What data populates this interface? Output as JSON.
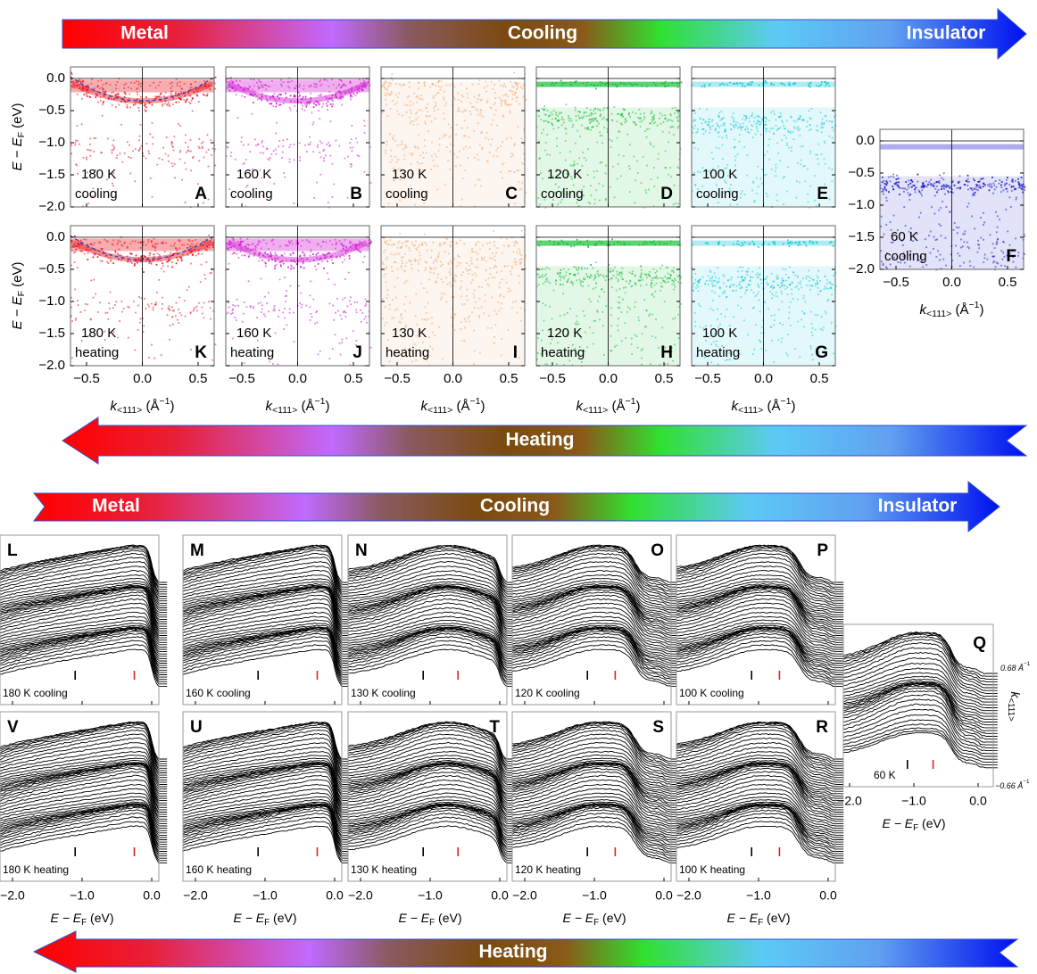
{
  "arrows": {
    "top_cooling": {
      "start": "Metal",
      "middle": "Cooling",
      "end": "Insulator"
    },
    "top_heating": {
      "middle": "Heating"
    },
    "bottom_cooling": {
      "start": "Metal",
      "middle": "Cooling",
      "end": "Insulator"
    },
    "bottom_heating": {
      "middle": "Heating"
    }
  },
  "maps": {
    "y_label": {
      "main": "E − E",
      "sub": "F",
      "unit": " (eV)"
    },
    "x_label": {
      "main": "k",
      "sub": "<111>",
      "unit": " (Å",
      "sup": "−1",
      "close": ")"
    },
    "yticks": [
      "0.0",
      "−0.5",
      "−1.0",
      "−1.5",
      "−2.0"
    ],
    "xticks": [
      "−0.5",
      "0.0",
      "0.5"
    ],
    "panels": [
      {
        "letter": "A",
        "temp": "180 K",
        "mode": "cooling",
        "color": "#e8141c"
      },
      {
        "letter": "B",
        "temp": "160 K",
        "mode": "cooling",
        "color": "#d01ad0"
      },
      {
        "letter": "C",
        "temp": "130 K",
        "mode": "cooling",
        "color": "#f0a060"
      },
      {
        "letter": "D",
        "temp": "120 K",
        "mode": "cooling",
        "color": "#18c03a"
      },
      {
        "letter": "E",
        "temp": "100 K",
        "mode": "cooling",
        "color": "#18c8d8"
      },
      {
        "letter": "K",
        "temp": "180 K",
        "mode": "heating",
        "color": "#e8141c"
      },
      {
        "letter": "J",
        "temp": "160 K",
        "mode": "heating",
        "color": "#d01ad0"
      },
      {
        "letter": "I",
        "temp": "130 K",
        "mode": "heating",
        "color": "#f0a060"
      },
      {
        "letter": "H",
        "temp": "120 K",
        "mode": "heating",
        "color": "#18c03a"
      },
      {
        "letter": "G",
        "temp": "100 K",
        "mode": "heating",
        "color": "#18c8d8"
      },
      {
        "letter": "F",
        "temp": "60 K",
        "mode": "cooling",
        "color": "#1414c8"
      }
    ]
  },
  "spectra": {
    "x_label": {
      "main": "E − E",
      "sub": "F",
      "unit": " (eV)"
    },
    "xticks": [
      "−2.0",
      "−1.0",
      "0.0"
    ],
    "k_label": {
      "main": "k",
      "sub": "<111>"
    },
    "k_top": {
      "main": "0.68 Å",
      "sup": "−1"
    },
    "k_bottom": {
      "main": "−0.66 Å",
      "sup": "−1"
    },
    "panels": [
      {
        "letter": "L",
        "label": "180 K cooling"
      },
      {
        "letter": "M",
        "label": "160 K cooling"
      },
      {
        "letter": "N",
        "label": "130 K cooling"
      },
      {
        "letter": "O",
        "label": "120 K cooling"
      },
      {
        "letter": "P",
        "label": "100 K cooling"
      },
      {
        "letter": "V",
        "label": "180 K heating"
      },
      {
        "letter": "U",
        "label": "160 K heating"
      },
      {
        "letter": "T",
        "label": "130 K heating"
      },
      {
        "letter": "S",
        "label": "120 K heating"
      },
      {
        "letter": "R",
        "label": "100 K heating"
      },
      {
        "letter": "Q",
        "label": "60 K"
      }
    ]
  }
}
